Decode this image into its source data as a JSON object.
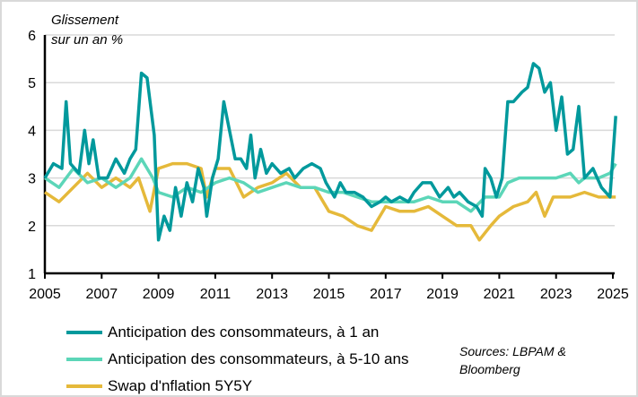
{
  "chart_data": {
    "type": "line",
    "ylabel": "Glissement sur un an %",
    "ylabel_lines": [
      "Glissement",
      "sur un an %"
    ],
    "ylim": [
      1,
      6
    ],
    "yticks": [
      "1",
      "2",
      "3",
      "4",
      "5",
      "6"
    ],
    "xlim": [
      2005,
      2025.2
    ],
    "xticks": [
      "2005",
      "2007",
      "2009",
      "2011",
      "2013",
      "2015",
      "2017",
      "2019",
      "2021",
      "2023",
      "2025"
    ],
    "grid": true,
    "legend_placement": "bottom-left",
    "sources": [
      "Sources: LBPAM &",
      "Bloomberg"
    ],
    "series": [
      {
        "name": "Anticipation des consommateurs, à 1 an",
        "color": "#00999C",
        "points": [
          [
            2005.0,
            3.0
          ],
          [
            2005.3,
            3.3
          ],
          [
            2005.6,
            3.2
          ],
          [
            2005.75,
            4.6
          ],
          [
            2005.9,
            3.3
          ],
          [
            2006.2,
            3.1
          ],
          [
            2006.4,
            4.0
          ],
          [
            2006.55,
            3.3
          ],
          [
            2006.7,
            3.8
          ],
          [
            2006.9,
            3.0
          ],
          [
            2007.2,
            3.0
          ],
          [
            2007.5,
            3.4
          ],
          [
            2007.8,
            3.1
          ],
          [
            2008.0,
            3.4
          ],
          [
            2008.2,
            3.6
          ],
          [
            2008.4,
            5.2
          ],
          [
            2008.6,
            5.1
          ],
          [
            2008.85,
            3.9
          ],
          [
            2009.0,
            1.7
          ],
          [
            2009.2,
            2.2
          ],
          [
            2009.4,
            1.9
          ],
          [
            2009.6,
            2.8
          ],
          [
            2009.8,
            2.2
          ],
          [
            2010.0,
            2.9
          ],
          [
            2010.2,
            2.5
          ],
          [
            2010.4,
            3.2
          ],
          [
            2010.6,
            2.8
          ],
          [
            2010.7,
            2.2
          ],
          [
            2010.9,
            3.0
          ],
          [
            2011.1,
            3.4
          ],
          [
            2011.3,
            4.6
          ],
          [
            2011.5,
            4.0
          ],
          [
            2011.7,
            3.4
          ],
          [
            2011.9,
            3.4
          ],
          [
            2012.1,
            3.2
          ],
          [
            2012.25,
            3.9
          ],
          [
            2012.4,
            3.0
          ],
          [
            2012.6,
            3.6
          ],
          [
            2012.8,
            3.1
          ],
          [
            2013.0,
            3.3
          ],
          [
            2013.3,
            3.1
          ],
          [
            2013.6,
            3.2
          ],
          [
            2013.8,
            3.0
          ],
          [
            2014.1,
            3.2
          ],
          [
            2014.4,
            3.3
          ],
          [
            2014.7,
            3.2
          ],
          [
            2014.9,
            2.9
          ],
          [
            2015.2,
            2.6
          ],
          [
            2015.4,
            2.9
          ],
          [
            2015.6,
            2.7
          ],
          [
            2015.9,
            2.7
          ],
          [
            2016.2,
            2.6
          ],
          [
            2016.5,
            2.4
          ],
          [
            2016.8,
            2.5
          ],
          [
            2017.0,
            2.6
          ],
          [
            2017.2,
            2.5
          ],
          [
            2017.5,
            2.6
          ],
          [
            2017.8,
            2.5
          ],
          [
            2018.0,
            2.7
          ],
          [
            2018.3,
            2.9
          ],
          [
            2018.6,
            2.9
          ],
          [
            2018.9,
            2.6
          ],
          [
            2019.2,
            2.8
          ],
          [
            2019.4,
            2.6
          ],
          [
            2019.6,
            2.7
          ],
          [
            2019.9,
            2.5
          ],
          [
            2020.2,
            2.4
          ],
          [
            2020.4,
            2.2
          ],
          [
            2020.5,
            3.2
          ],
          [
            2020.7,
            3.0
          ],
          [
            2020.9,
            2.6
          ],
          [
            2021.1,
            3.0
          ],
          [
            2021.3,
            4.6
          ],
          [
            2021.5,
            4.6
          ],
          [
            2021.8,
            4.8
          ],
          [
            2022.0,
            4.9
          ],
          [
            2022.2,
            5.4
          ],
          [
            2022.4,
            5.3
          ],
          [
            2022.6,
            4.8
          ],
          [
            2022.8,
            5.0
          ],
          [
            2023.0,
            4.0
          ],
          [
            2023.2,
            4.7
          ],
          [
            2023.4,
            3.5
          ],
          [
            2023.6,
            3.6
          ],
          [
            2023.8,
            4.5
          ],
          [
            2024.0,
            3.0
          ],
          [
            2024.3,
            3.2
          ],
          [
            2024.6,
            2.8
          ],
          [
            2024.9,
            2.6
          ],
          [
            2025.1,
            4.3
          ]
        ]
      },
      {
        "name": "Anticipation des consommateurs, à 5-10 ans",
        "color": "#5CD6B8",
        "points": [
          [
            2005.0,
            3.0
          ],
          [
            2005.5,
            2.8
          ],
          [
            2006.0,
            3.2
          ],
          [
            2006.5,
            2.9
          ],
          [
            2007.0,
            3.0
          ],
          [
            2007.5,
            2.8
          ],
          [
            2008.0,
            3.0
          ],
          [
            2008.4,
            3.4
          ],
          [
            2008.8,
            3.0
          ],
          [
            2009.0,
            2.7
          ],
          [
            2009.5,
            2.6
          ],
          [
            2010.0,
            2.8
          ],
          [
            2010.5,
            2.7
          ],
          [
            2011.0,
            2.9
          ],
          [
            2011.5,
            3.0
          ],
          [
            2012.0,
            2.9
          ],
          [
            2012.5,
            2.7
          ],
          [
            2013.0,
            2.8
          ],
          [
            2013.5,
            2.9
          ],
          [
            2014.0,
            2.8
          ],
          [
            2014.5,
            2.8
          ],
          [
            2015.0,
            2.7
          ],
          [
            2015.5,
            2.7
          ],
          [
            2016.0,
            2.6
          ],
          [
            2016.5,
            2.5
          ],
          [
            2017.0,
            2.5
          ],
          [
            2017.5,
            2.5
          ],
          [
            2018.0,
            2.5
          ],
          [
            2018.5,
            2.6
          ],
          [
            2019.0,
            2.5
          ],
          [
            2019.5,
            2.5
          ],
          [
            2020.0,
            2.3
          ],
          [
            2020.5,
            2.6
          ],
          [
            2021.0,
            2.6
          ],
          [
            2021.3,
            2.9
          ],
          [
            2021.7,
            3.0
          ],
          [
            2022.0,
            3.0
          ],
          [
            2022.5,
            3.0
          ],
          [
            2023.0,
            3.0
          ],
          [
            2023.5,
            3.1
          ],
          [
            2023.8,
            2.9
          ],
          [
            2024.0,
            3.0
          ],
          [
            2024.5,
            3.0
          ],
          [
            2024.9,
            3.1
          ],
          [
            2025.1,
            3.3
          ]
        ]
      },
      {
        "name": "Swap d'nflation 5Y5Y",
        "color": "#E5B93A",
        "points": [
          [
            2005.0,
            2.7
          ],
          [
            2005.5,
            2.5
          ],
          [
            2006.0,
            2.8
          ],
          [
            2006.5,
            3.1
          ],
          [
            2007.0,
            2.8
          ],
          [
            2007.5,
            3.0
          ],
          [
            2008.0,
            2.8
          ],
          [
            2008.3,
            3.0
          ],
          [
            2008.7,
            2.3
          ],
          [
            2009.0,
            3.2
          ],
          [
            2009.5,
            3.3
          ],
          [
            2010.0,
            3.3
          ],
          [
            2010.5,
            3.2
          ],
          [
            2010.7,
            2.6
          ],
          [
            2011.0,
            3.2
          ],
          [
            2011.5,
            3.2
          ],
          [
            2012.0,
            2.6
          ],
          [
            2012.5,
            2.8
          ],
          [
            2013.0,
            2.9
          ],
          [
            2013.5,
            3.1
          ],
          [
            2014.0,
            2.8
          ],
          [
            2014.5,
            2.8
          ],
          [
            2015.0,
            2.3
          ],
          [
            2015.5,
            2.2
          ],
          [
            2016.0,
            2.0
          ],
          [
            2016.5,
            1.9
          ],
          [
            2017.0,
            2.4
          ],
          [
            2017.5,
            2.3
          ],
          [
            2018.0,
            2.3
          ],
          [
            2018.5,
            2.4
          ],
          [
            2019.0,
            2.2
          ],
          [
            2019.5,
            2.0
          ],
          [
            2020.0,
            2.0
          ],
          [
            2020.3,
            1.7
          ],
          [
            2020.7,
            2.0
          ],
          [
            2021.0,
            2.2
          ],
          [
            2021.5,
            2.4
          ],
          [
            2022.0,
            2.5
          ],
          [
            2022.3,
            2.7
          ],
          [
            2022.6,
            2.2
          ],
          [
            2022.9,
            2.6
          ],
          [
            2023.5,
            2.6
          ],
          [
            2024.0,
            2.7
          ],
          [
            2024.5,
            2.6
          ],
          [
            2025.1,
            2.6
          ]
        ]
      }
    ]
  }
}
